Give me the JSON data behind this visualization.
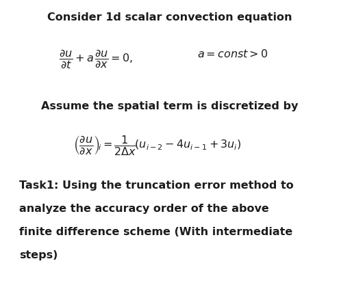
{
  "title": "Consider 1d scalar convection equation",
  "text2": "Assume the spatial term is discretized by",
  "task_lines": [
    "Task1: Using the truncation error method to",
    "analyze the accuracy order of the above",
    "finite difference scheme (With intermediate",
    "steps)"
  ],
  "bg_color": "#ffffff",
  "text_color": "#1c1c1c",
  "title_fontsize": 11.5,
  "eq_fontsize": 11.5,
  "body_fontsize": 11.5,
  "heading_fontsize": 11.5
}
